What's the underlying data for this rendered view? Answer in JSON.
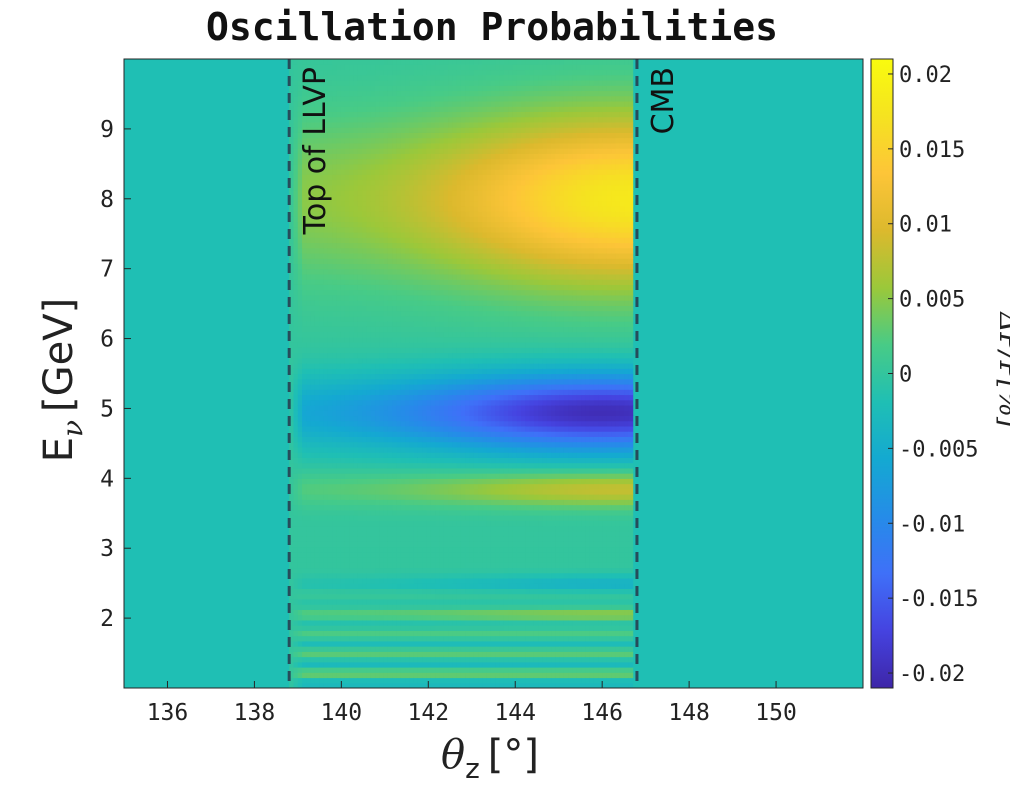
{
  "chart_data": {
    "type": "heatmap",
    "title": "Oscillation Probabilities",
    "xlabel": {
      "symbol": "θ",
      "subscript": "z",
      "unit": "[°]"
    },
    "ylabel": {
      "symbol": "E",
      "subscript": "ν",
      "unit": "[GeV]"
    },
    "xlim": [
      135,
      152
    ],
    "ylim": [
      1,
      10
    ],
    "x_ticks": [
      "136",
      "138",
      "140",
      "142",
      "144",
      "146",
      "148",
      "150"
    ],
    "y_ticks": [
      "2",
      "3",
      "4",
      "5",
      "6",
      "7",
      "8",
      "9"
    ],
    "colorbar": {
      "min": -0.021,
      "max": 0.021,
      "ticks": [
        "-0.02",
        "-0.015",
        "-0.01",
        "-0.005",
        "0",
        "0.005",
        "0.01",
        "0.015",
        "0.02"
      ],
      "label": "ΔP/P[%]",
      "colormap": [
        "#3e26a8",
        "#4543e0",
        "#3f70f8",
        "#258ce8",
        "#14a9d1",
        "#1fbfb4",
        "#48cb86",
        "#9bc83a",
        "#dcb92d",
        "#fdc538",
        "#f5e320",
        "#f9fb0e"
      ]
    },
    "baseline_value": 0,
    "anomaly_region": {
      "theta_min": 138.8,
      "theta_max": 146.7
    },
    "features": [
      {
        "energy": 8.0,
        "width": 1.2,
        "value": 0.018,
        "peak_theta": 146.7
      },
      {
        "energy": 4.95,
        "width": 0.55,
        "value": -0.02,
        "peak_theta": 146.0
      },
      {
        "energy": 3.85,
        "width": 0.25,
        "value": 0.0085,
        "peak_theta": 146.5
      },
      {
        "energy": 2.5,
        "width": 0.13,
        "value": -0.004,
        "peak_theta": 146.5
      },
      {
        "energy": 2.05,
        "width": 0.1,
        "value": 0.004,
        "peak_theta": 146.5
      }
    ],
    "reference_lines": [
      {
        "theta": 138.8,
        "label": "Top of LLVP",
        "style": "dashed"
      },
      {
        "theta": 146.8,
        "label": "CMB",
        "style": "dashed"
      }
    ],
    "grid": false
  }
}
